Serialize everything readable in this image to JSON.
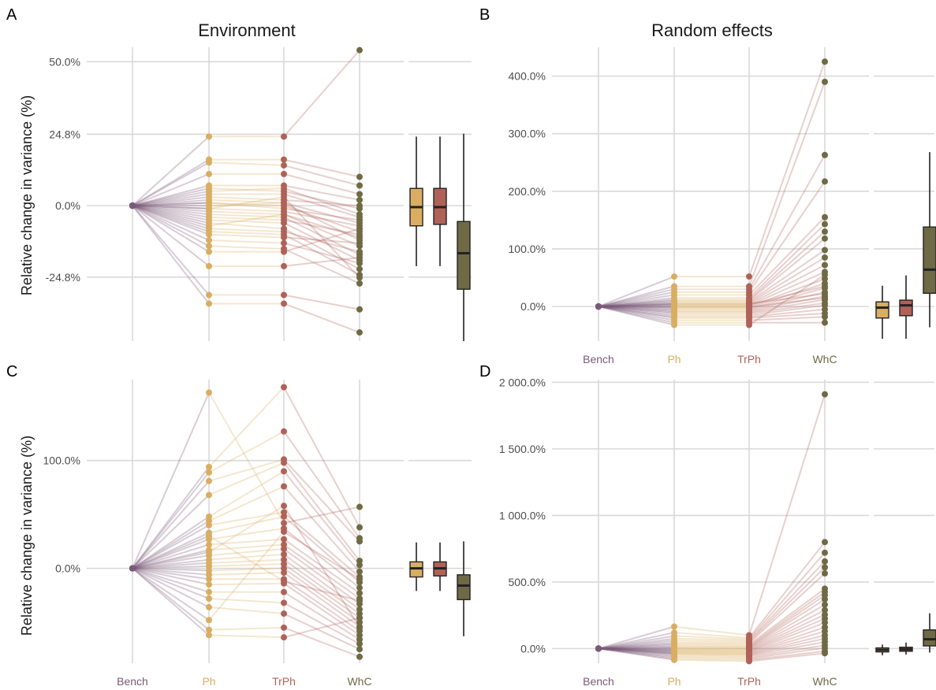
{
  "colors": {
    "Bench": "#7a5a78",
    "Ph": "#d9ae62",
    "TrPh": "#b06258",
    "WhC": "#6f6a45",
    "grid": "#d9d9d9"
  },
  "ylabel": "Relative change in variance (%)",
  "chart_data": [
    {
      "letter": "A",
      "title": "Environment",
      "type": "line",
      "categories": [
        "Bench",
        "Ph",
        "TrPh",
        "WhC"
      ],
      "ylim": [
        -47,
        55
      ],
      "yticks": [
        -24.8,
        0,
        24.8,
        50
      ],
      "ytick_labels": [
        "-24.8%",
        "0.0%",
        "24.8%",
        "50.0%"
      ],
      "show_xticks": false,
      "series": [
        {
          "values": [
            0,
            24,
            24,
            54
          ]
        },
        {
          "values": [
            0,
            16,
            16,
            10
          ]
        },
        {
          "values": [
            0,
            15,
            14,
            7
          ]
        },
        {
          "values": [
            0,
            11,
            11,
            4
          ]
        },
        {
          "values": [
            0,
            7,
            7,
            2
          ]
        },
        {
          "values": [
            0,
            6,
            5,
            -1
          ]
        },
        {
          "values": [
            0,
            4,
            4,
            -4
          ]
        },
        {
          "values": [
            0,
            3,
            2,
            0
          ]
        },
        {
          "values": [
            0,
            2,
            1,
            -6
          ]
        },
        {
          "values": [
            0,
            1,
            0,
            -9
          ]
        },
        {
          "values": [
            0,
            0,
            1,
            -12
          ]
        },
        {
          "values": [
            0,
            -1,
            -2,
            -7
          ]
        },
        {
          "values": [
            0,
            -2,
            -3,
            -14
          ]
        },
        {
          "values": [
            0,
            -3,
            -4,
            -17
          ]
        },
        {
          "values": [
            0,
            -4,
            -5,
            -10
          ]
        },
        {
          "values": [
            0,
            -5,
            -6,
            -19
          ]
        },
        {
          "values": [
            0,
            -6,
            -8,
            -22
          ]
        },
        {
          "values": [
            0,
            -8,
            -9,
            -16
          ]
        },
        {
          "values": [
            0,
            -9,
            -10,
            -24
          ]
        },
        {
          "values": [
            0,
            -10,
            -11,
            -13
          ]
        },
        {
          "values": [
            0,
            -12,
            -13,
            -20
          ]
        },
        {
          "values": [
            0,
            -14,
            -15,
            -27
          ]
        },
        {
          "values": [
            0,
            -16,
            -16,
            -8
          ]
        },
        {
          "values": [
            0,
            -21,
            -21,
            -18
          ]
        },
        {
          "values": [
            0,
            -31,
            -31,
            -36
          ]
        },
        {
          "values": [
            0,
            -34,
            -34,
            -44
          ]
        },
        {
          "values": [
            0,
            5,
            6,
            -3
          ]
        },
        {
          "values": [
            0,
            -1,
            3,
            -25
          ]
        },
        {
          "values": [
            0,
            1,
            -1,
            -5
          ]
        },
        {
          "values": [
            0,
            -7,
            -3,
            -11
          ]
        }
      ],
      "boxplots": [
        {
          "name": "Ph",
          "q1": -7,
          "median": -0.5,
          "q3": 6,
          "whisker_low": -21,
          "whisker_high": 24
        },
        {
          "name": "TrPh",
          "q1": -6.5,
          "median": -0.5,
          "q3": 6,
          "whisker_low": -21,
          "whisker_high": 24
        },
        {
          "name": "WhC",
          "q1": -29,
          "median": -16.5,
          "q3": -5.5,
          "whisker_low": -47,
          "whisker_high": 25
        }
      ]
    },
    {
      "letter": "B",
      "title": "Random effects",
      "type": "line",
      "categories": [
        "Bench",
        "Ph",
        "TrPh",
        "WhC"
      ],
      "ylim": [
        -60,
        450
      ],
      "yticks": [
        0,
        100,
        200,
        300,
        400
      ],
      "ytick_labels": [
        "0.0%",
        "100.0%",
        "200.0%",
        "300.0%",
        "400.0%"
      ],
      "show_xticks": true,
      "series": [
        {
          "values": [
            0,
            52,
            52,
            425
          ]
        },
        {
          "values": [
            0,
            35,
            35,
            390
          ]
        },
        {
          "values": [
            0,
            30,
            30,
            263
          ]
        },
        {
          "values": [
            0,
            25,
            25,
            217
          ]
        },
        {
          "values": [
            0,
            20,
            20,
            155
          ]
        },
        {
          "values": [
            0,
            15,
            15,
            143
          ]
        },
        {
          "values": [
            0,
            12,
            12,
            130
          ]
        },
        {
          "values": [
            0,
            10,
            10,
            118
          ]
        },
        {
          "values": [
            0,
            8,
            8,
            98
          ]
        },
        {
          "values": [
            0,
            6,
            6,
            85
          ]
        },
        {
          "values": [
            0,
            4,
            4,
            72
          ]
        },
        {
          "values": [
            0,
            2,
            2,
            60
          ]
        },
        {
          "values": [
            0,
            0,
            0,
            48
          ]
        },
        {
          "values": [
            0,
            -2,
            -2,
            40
          ]
        },
        {
          "values": [
            0,
            -4,
            -4,
            32
          ]
        },
        {
          "values": [
            0,
            -6,
            -6,
            25
          ]
        },
        {
          "values": [
            0,
            -8,
            -8,
            18
          ]
        },
        {
          "values": [
            0,
            -10,
            -10,
            12
          ]
        },
        {
          "values": [
            0,
            -12,
            -12,
            6
          ]
        },
        {
          "values": [
            0,
            -15,
            -15,
            2
          ]
        },
        {
          "values": [
            0,
            -18,
            -18,
            -5
          ]
        },
        {
          "values": [
            0,
            -20,
            -20,
            -12
          ]
        },
        {
          "values": [
            0,
            -24,
            -24,
            -18
          ]
        },
        {
          "values": [
            0,
            -28,
            -28,
            -28
          ]
        },
        {
          "values": [
            0,
            -32,
            -32,
            55
          ]
        },
        {
          "values": [
            0,
            5,
            5,
            22
          ]
        },
        {
          "values": [
            0,
            -1,
            -1,
            15
          ]
        },
        {
          "values": [
            0,
            3,
            3,
            35
          ]
        }
      ],
      "boxplots": [
        {
          "name": "Ph",
          "q1": -20,
          "median": -2,
          "q3": 8,
          "whisker_low": -56,
          "whisker_high": 36
        },
        {
          "name": "TrPh",
          "q1": -16,
          "median": 2,
          "q3": 11,
          "whisker_low": -56,
          "whisker_high": 54
        },
        {
          "name": "WhC",
          "q1": 23,
          "median": 64,
          "q3": 138,
          "whisker_low": -36,
          "whisker_high": 268
        }
      ]
    },
    {
      "letter": "C",
      "title": "",
      "type": "line",
      "categories": [
        "Bench",
        "Ph",
        "TrPh",
        "WhC"
      ],
      "ylim": [
        -88,
        175
      ],
      "yticks": [
        0,
        100
      ],
      "ytick_labels": [
        "0.0%",
        "100.0%"
      ],
      "show_xticks": true,
      "series": [
        {
          "values": [
            0,
            163,
            42,
            57
          ]
        },
        {
          "values": [
            0,
            94,
            168,
            38
          ]
        },
        {
          "values": [
            0,
            89,
            127,
            28
          ]
        },
        {
          "values": [
            0,
            81,
            101,
            25
          ]
        },
        {
          "values": [
            0,
            68,
            98,
            7
          ]
        },
        {
          "values": [
            0,
            48,
            90,
            3
          ]
        },
        {
          "values": [
            0,
            44,
            76,
            -3
          ]
        },
        {
          "values": [
            0,
            40,
            52,
            -8
          ]
        },
        {
          "values": [
            0,
            33,
            48,
            -13
          ]
        },
        {
          "values": [
            0,
            27,
            37,
            -18
          ]
        },
        {
          "values": [
            0,
            22,
            27,
            -23
          ]
        },
        {
          "values": [
            0,
            17,
            22,
            -28
          ]
        },
        {
          "values": [
            0,
            12,
            18,
            -33
          ]
        },
        {
          "values": [
            0,
            8,
            13,
            -38
          ]
        },
        {
          "values": [
            0,
            5,
            8,
            -42
          ]
        },
        {
          "values": [
            0,
            2,
            4,
            -46
          ]
        },
        {
          "values": [
            0,
            -2,
            0,
            -50
          ]
        },
        {
          "values": [
            0,
            -6,
            -4,
            -54
          ]
        },
        {
          "values": [
            0,
            -10,
            -10,
            -58
          ]
        },
        {
          "values": [
            0,
            -15,
            -14,
            -62
          ]
        },
        {
          "values": [
            0,
            -22,
            -22,
            -66
          ]
        },
        {
          "values": [
            0,
            -28,
            -32,
            -70
          ]
        },
        {
          "values": [
            0,
            -36,
            -42,
            -75
          ]
        },
        {
          "values": [
            0,
            -57,
            -55,
            -82
          ]
        },
        {
          "values": [
            0,
            -62,
            -64,
            -46
          ]
        },
        {
          "values": [
            0,
            30,
            -12,
            -30
          ]
        },
        {
          "values": [
            0,
            -48,
            34,
            -10
          ]
        },
        {
          "values": [
            0,
            15,
            58,
            -55
          ]
        }
      ],
      "boxplots": [
        {
          "name": "Ph",
          "q1": -8,
          "median": 0,
          "q3": 6,
          "whisker_low": -21,
          "whisker_high": 24
        },
        {
          "name": "TrPh",
          "q1": -7,
          "median": 0,
          "q3": 6,
          "whisker_low": -21,
          "whisker_high": 24
        },
        {
          "name": "WhC",
          "q1": -29,
          "median": -16,
          "q3": -6,
          "whisker_low": -63,
          "whisker_high": 25
        }
      ]
    },
    {
      "letter": "D",
      "title": "",
      "type": "line",
      "categories": [
        "Bench",
        "Ph",
        "TrPh",
        "WhC"
      ],
      "ylim": [
        -110,
        2020
      ],
      "yticks": [
        0,
        500,
        1000,
        1500,
        2000
      ],
      "ytick_labels": [
        "0.0%",
        "500.0%",
        "1 000.0%",
        "1 500.0%",
        "2 000.0%"
      ],
      "show_xticks": true,
      "series": [
        {
          "values": [
            0,
            165,
            100,
            1910
          ]
        },
        {
          "values": [
            0,
            120,
            80,
            800
          ]
        },
        {
          "values": [
            0,
            95,
            70,
            720
          ]
        },
        {
          "values": [
            0,
            75,
            60,
            655
          ]
        },
        {
          "values": [
            0,
            60,
            50,
            610
          ]
        },
        {
          "values": [
            0,
            45,
            40,
            565
          ]
        },
        {
          "values": [
            0,
            35,
            30,
            450
          ]
        },
        {
          "values": [
            0,
            25,
            20,
            425
          ]
        },
        {
          "values": [
            0,
            15,
            12,
            400
          ]
        },
        {
          "values": [
            0,
            8,
            6,
            370
          ]
        },
        {
          "values": [
            0,
            2,
            0,
            330
          ]
        },
        {
          "values": [
            0,
            -5,
            -5,
            290
          ]
        },
        {
          "values": [
            0,
            -10,
            -12,
            255
          ]
        },
        {
          "values": [
            0,
            -15,
            -18,
            225
          ]
        },
        {
          "values": [
            0,
            -20,
            -24,
            195
          ]
        },
        {
          "values": [
            0,
            -25,
            -30,
            160
          ]
        },
        {
          "values": [
            0,
            -30,
            -36,
            130
          ]
        },
        {
          "values": [
            0,
            -35,
            -42,
            100
          ]
        },
        {
          "values": [
            0,
            -40,
            -48,
            75
          ]
        },
        {
          "values": [
            0,
            -45,
            -55,
            50
          ]
        },
        {
          "values": [
            0,
            -55,
            -65,
            25
          ]
        },
        {
          "values": [
            0,
            -65,
            -75,
            5
          ]
        },
        {
          "values": [
            0,
            -75,
            -85,
            -20
          ]
        },
        {
          "values": [
            0,
            -85,
            -95,
            -35
          ]
        }
      ],
      "boxplots": [
        {
          "name": "Ph",
          "q1": -25,
          "median": -10,
          "q3": 5,
          "whisker_low": -50,
          "whisker_high": 30
        },
        {
          "name": "TrPh",
          "q1": -20,
          "median": -5,
          "q3": 10,
          "whisker_low": -45,
          "whisker_high": 45
        },
        {
          "name": "WhC",
          "q1": 20,
          "median": 70,
          "q3": 140,
          "whisker_low": -30,
          "whisker_high": 265
        }
      ]
    }
  ]
}
